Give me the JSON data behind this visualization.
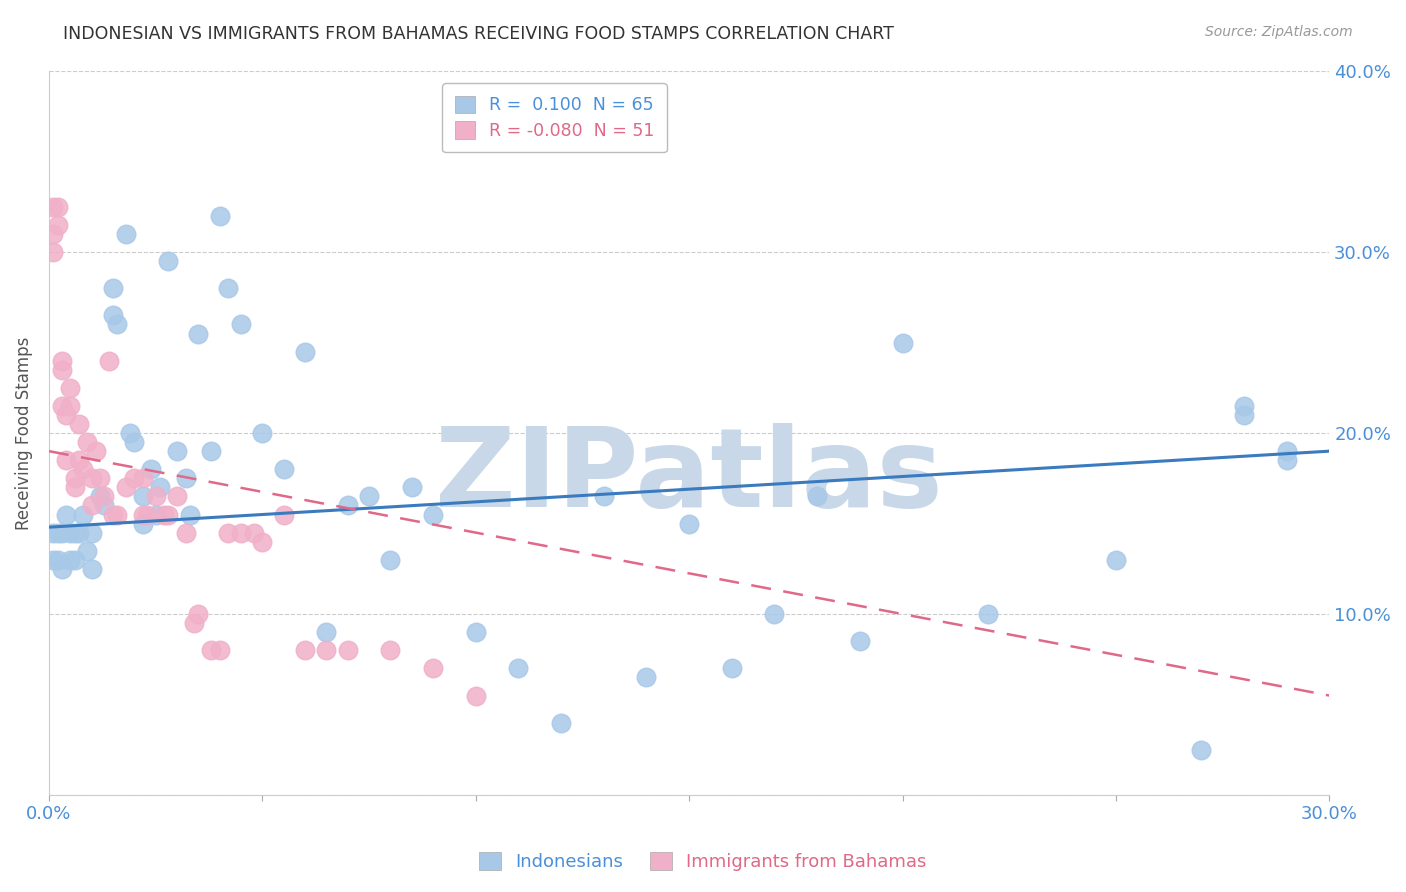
{
  "title": "INDONESIAN VS IMMIGRANTS FROM BAHAMAS RECEIVING FOOD STAMPS CORRELATION CHART",
  "source": "Source: ZipAtlas.com",
  "ylabel": "Receiving Food Stamps",
  "xmin": 0.0,
  "xmax": 0.3,
  "ymin": 0.0,
  "ymax": 0.4,
  "xtick_positions": [
    0.0,
    0.05,
    0.1,
    0.15,
    0.2,
    0.25,
    0.3
  ],
  "xtick_labels": [
    "0.0%",
    "",
    "",
    "",
    "",
    "",
    "30.0%"
  ],
  "ytick_positions": [
    0.0,
    0.1,
    0.2,
    0.3,
    0.4
  ],
  "ytick_labels_right": [
    "",
    "10.0%",
    "20.0%",
    "30.0%",
    "40.0%"
  ],
  "indonesian_color": "#a8c8e8",
  "bahamas_color": "#f0b0c8",
  "indonesian_line_color": "#3a7abf",
  "bahamas_line_color": "#e06888",
  "watermark_text": "ZIPatlas",
  "watermark_color": "#c8d8e8",
  "blue_line_x0": 0.0,
  "blue_line_y0": 0.148,
  "blue_line_x1": 0.3,
  "blue_line_y1": 0.19,
  "pink_line_x0": 0.0,
  "pink_line_y0": 0.19,
  "pink_line_x1": 0.3,
  "pink_line_y1": 0.055,
  "indonesian_x": [
    0.001,
    0.001,
    0.002,
    0.002,
    0.003,
    0.003,
    0.004,
    0.005,
    0.005,
    0.006,
    0.006,
    0.007,
    0.008,
    0.009,
    0.01,
    0.01,
    0.012,
    0.013,
    0.015,
    0.015,
    0.016,
    0.018,
    0.019,
    0.02,
    0.022,
    0.022,
    0.024,
    0.025,
    0.026,
    0.028,
    0.03,
    0.032,
    0.033,
    0.035,
    0.038,
    0.04,
    0.042,
    0.045,
    0.05,
    0.055,
    0.06,
    0.065,
    0.07,
    0.075,
    0.08,
    0.085,
    0.09,
    0.1,
    0.11,
    0.12,
    0.13,
    0.14,
    0.15,
    0.16,
    0.17,
    0.18,
    0.19,
    0.2,
    0.22,
    0.25,
    0.27,
    0.28,
    0.28,
    0.29,
    0.29
  ],
  "indonesian_y": [
    0.145,
    0.13,
    0.145,
    0.13,
    0.145,
    0.125,
    0.155,
    0.145,
    0.13,
    0.145,
    0.13,
    0.145,
    0.155,
    0.135,
    0.145,
    0.125,
    0.165,
    0.16,
    0.28,
    0.265,
    0.26,
    0.31,
    0.2,
    0.195,
    0.15,
    0.165,
    0.18,
    0.155,
    0.17,
    0.295,
    0.19,
    0.175,
    0.155,
    0.255,
    0.19,
    0.32,
    0.28,
    0.26,
    0.2,
    0.18,
    0.245,
    0.09,
    0.16,
    0.165,
    0.13,
    0.17,
    0.155,
    0.09,
    0.07,
    0.04,
    0.165,
    0.065,
    0.15,
    0.07,
    0.1,
    0.165,
    0.085,
    0.25,
    0.1,
    0.13,
    0.025,
    0.215,
    0.21,
    0.19,
    0.185
  ],
  "bahamas_x": [
    0.001,
    0.001,
    0.001,
    0.002,
    0.002,
    0.003,
    0.003,
    0.003,
    0.004,
    0.004,
    0.005,
    0.005,
    0.006,
    0.006,
    0.007,
    0.007,
    0.008,
    0.009,
    0.01,
    0.01,
    0.011,
    0.012,
    0.013,
    0.014,
    0.015,
    0.016,
    0.018,
    0.02,
    0.022,
    0.022,
    0.023,
    0.025,
    0.027,
    0.028,
    0.03,
    0.032,
    0.034,
    0.035,
    0.038,
    0.04,
    0.042,
    0.045,
    0.048,
    0.05,
    0.055,
    0.06,
    0.065,
    0.07,
    0.08,
    0.09,
    0.1
  ],
  "bahamas_y": [
    0.325,
    0.31,
    0.3,
    0.325,
    0.315,
    0.24,
    0.235,
    0.215,
    0.21,
    0.185,
    0.225,
    0.215,
    0.175,
    0.17,
    0.205,
    0.185,
    0.18,
    0.195,
    0.175,
    0.16,
    0.19,
    0.175,
    0.165,
    0.24,
    0.155,
    0.155,
    0.17,
    0.175,
    0.155,
    0.175,
    0.155,
    0.165,
    0.155,
    0.155,
    0.165,
    0.145,
    0.095,
    0.1,
    0.08,
    0.08,
    0.145,
    0.145,
    0.145,
    0.14,
    0.155,
    0.08,
    0.08,
    0.08,
    0.08,
    0.07,
    0.055
  ]
}
